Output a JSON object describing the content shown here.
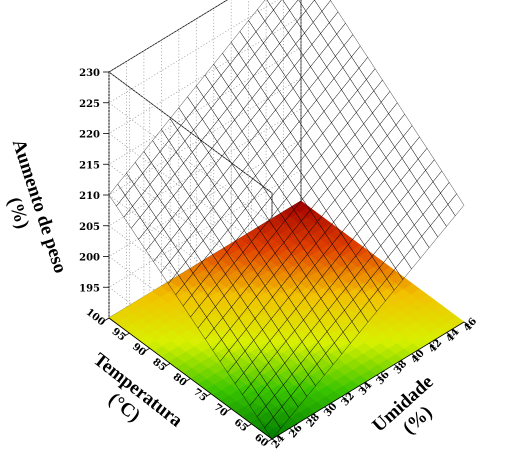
{
  "chart_data": {
    "type": "surface3d",
    "title": "",
    "xlabel": "Umidade",
    "xunit": "(%)",
    "ylabel": "Temperatura",
    "yunit": "(°C)",
    "zlabel": "Aumento de peso",
    "zunit": "(%)",
    "x_ticks": [
      24,
      26,
      28,
      30,
      32,
      34,
      36,
      38,
      40,
      42,
      44,
      46
    ],
    "y_ticks": [
      60,
      65,
      70,
      75,
      80,
      85,
      90,
      95,
      100
    ],
    "z_ticks": [
      195,
      200,
      205,
      210,
      215,
      220,
      225,
      230
    ],
    "xlim": [
      24,
      46
    ],
    "ylim": [
      60,
      100
    ],
    "zlim": [
      190,
      230
    ],
    "corners": [
      {
        "x": 24,
        "y": 60,
        "z": 190
      },
      {
        "x": 46,
        "y": 60,
        "z": 209
      },
      {
        "x": 24,
        "y": 100,
        "z": 210
      },
      {
        "x": 46,
        "y": 100,
        "z": 230
      }
    ],
    "mesh_divisions": 22,
    "colormap": [
      "#007a00",
      "#39c400",
      "#d8f000",
      "#f2c000",
      "#e04000",
      "#a00000"
    ],
    "contour_floor": true,
    "grid": true
  }
}
